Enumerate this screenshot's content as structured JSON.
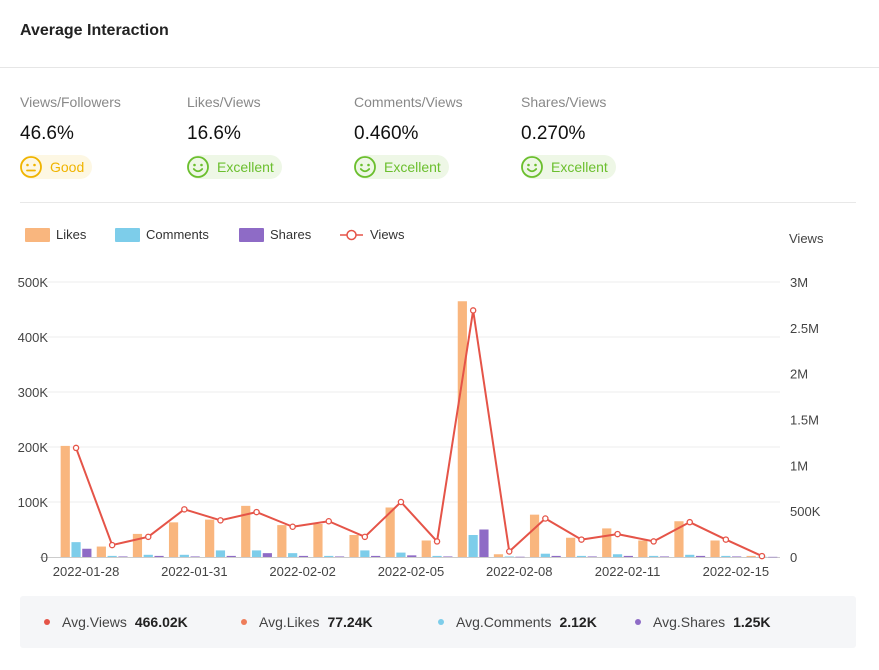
{
  "title": "Average Interaction",
  "metrics": [
    {
      "label": "Views/Followers",
      "value": "46.6%",
      "rating": "Good",
      "type": "good"
    },
    {
      "label": "Likes/Views",
      "value": "16.6%",
      "rating": "Excellent",
      "type": "excellent"
    },
    {
      "label": "Comments/Views",
      "value": "0.460%",
      "rating": "Excellent",
      "type": "excellent"
    },
    {
      "label": "Shares/Views",
      "value": "0.270%",
      "rating": "Excellent",
      "type": "excellent"
    }
  ],
  "colors": {
    "likes": "#f9b67e",
    "comments": "#7dcdea",
    "shares": "#8e6bc6",
    "views": "#e55448",
    "good": "#f0b400",
    "excellent": "#6bbf2e"
  },
  "footer": [
    {
      "label": "Avg.Views",
      "value": "466.02K",
      "color": "#e55448"
    },
    {
      "label": "Avg.Likes",
      "value": "77.24K",
      "color": "#ee7d5a"
    },
    {
      "label": "Avg.Comments",
      "value": "2.12K",
      "color": "#7dcdea"
    },
    {
      "label": "Avg.Shares",
      "value": "1.25K",
      "color": "#8e6bc6"
    }
  ],
  "chart_data": {
    "type": "bar",
    "legend": [
      "Likes",
      "Comments",
      "Shares",
      "Views"
    ],
    "right_axis_title": "Views",
    "left_ticks": [
      "0",
      "100K",
      "200K",
      "300K",
      "400K",
      "500K"
    ],
    "right_ticks": [
      "0",
      "500K",
      "1M",
      "1.5M",
      "2M",
      "2.5M",
      "3M"
    ],
    "x_tick_labels": [
      "2022-01-28",
      "2022-01-31",
      "2022-02-02",
      "2022-02-05",
      "2022-02-08",
      "2022-02-11",
      "2022-02-15"
    ],
    "x_tick_indices": [
      0,
      3,
      6,
      9,
      12,
      15,
      18
    ],
    "left_ylim": [
      0,
      500000
    ],
    "right_ylim": [
      0,
      3000000
    ],
    "series": [
      {
        "name": "Likes",
        "axis": "left",
        "values": [
          202000,
          19000,
          42000,
          63000,
          68000,
          93000,
          58000,
          60000,
          40000,
          90000,
          30000,
          465000,
          5000,
          77000,
          35000,
          52000,
          30000,
          65000,
          30000,
          2000
        ]
      },
      {
        "name": "Comments",
        "axis": "left",
        "values": [
          27000,
          2000,
          4000,
          4000,
          12000,
          12000,
          7000,
          2000,
          12000,
          8000,
          2000,
          40000,
          1000,
          6000,
          2000,
          5000,
          2000,
          4000,
          2000,
          500
        ]
      },
      {
        "name": "Shares",
        "axis": "left",
        "values": [
          15000,
          1000,
          2000,
          1000,
          2000,
          7000,
          2000,
          1000,
          2000,
          3000,
          1000,
          50000,
          500,
          2000,
          1000,
          2000,
          1000,
          2000,
          1000,
          300
        ]
      },
      {
        "name": "Views",
        "axis": "right",
        "values": [
          1190000,
          130000,
          220000,
          520000,
          400000,
          490000,
          330000,
          390000,
          220000,
          600000,
          170000,
          2690000,
          60000,
          420000,
          190000,
          250000,
          170000,
          380000,
          190000,
          10000
        ]
      }
    ]
  }
}
